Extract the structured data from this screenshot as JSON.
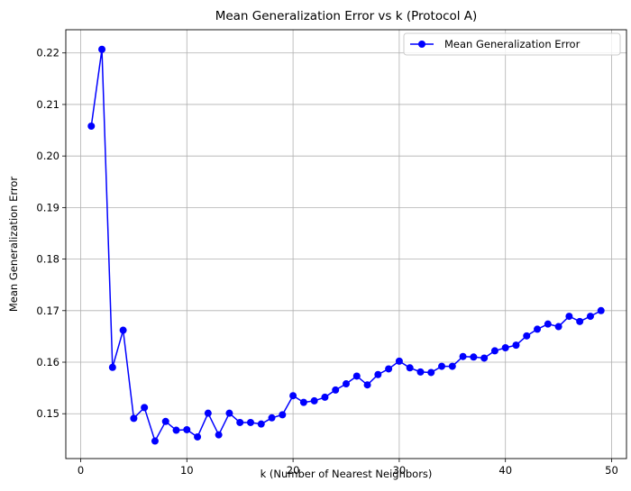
{
  "chart_data": {
    "type": "line",
    "title": "Mean Generalization Error vs k (Protocol A)",
    "xlabel": "k (Number of Nearest Neighbors)",
    "ylabel": "Mean Generalization Error",
    "xlim": [
      -1.4,
      51.4
    ],
    "ylim": [
      0.1413,
      0.2245
    ],
    "xticks": [
      0,
      10,
      20,
      30,
      40,
      50
    ],
    "yticks": [
      0.15,
      0.16,
      0.17,
      0.18,
      0.19,
      0.2,
      0.21,
      0.22
    ],
    "grid": true,
    "legend_position": "top-right",
    "series": [
      {
        "name": "Mean Generalization Error",
        "color": "#0000ff",
        "marker": "circle",
        "x": [
          1,
          2,
          3,
          4,
          5,
          6,
          7,
          8,
          9,
          10,
          11,
          12,
          13,
          14,
          15,
          16,
          17,
          18,
          19,
          20,
          21,
          22,
          23,
          24,
          25,
          26,
          27,
          28,
          29,
          30,
          31,
          32,
          33,
          34,
          35,
          36,
          37,
          38,
          39,
          40,
          41,
          42,
          43,
          44,
          45,
          46,
          47,
          48,
          49
        ],
        "values": [
          0.2058,
          0.2207,
          0.159,
          0.1662,
          0.1491,
          0.1512,
          0.1447,
          0.1485,
          0.1468,
          0.1469,
          0.1455,
          0.1501,
          0.1459,
          0.1501,
          0.1483,
          0.1483,
          0.148,
          0.1492,
          0.1498,
          0.1535,
          0.1522,
          0.1525,
          0.1532,
          0.1546,
          0.1558,
          0.1573,
          0.1556,
          0.1576,
          0.1587,
          0.1602,
          0.1589,
          0.1581,
          0.158,
          0.1592,
          0.1592,
          0.1611,
          0.161,
          0.1608,
          0.1622,
          0.1628,
          0.1633,
          0.1651,
          0.1664,
          0.1674,
          0.1669,
          0.1689,
          0.1679,
          0.1689,
          0.17
        ]
      }
    ]
  }
}
